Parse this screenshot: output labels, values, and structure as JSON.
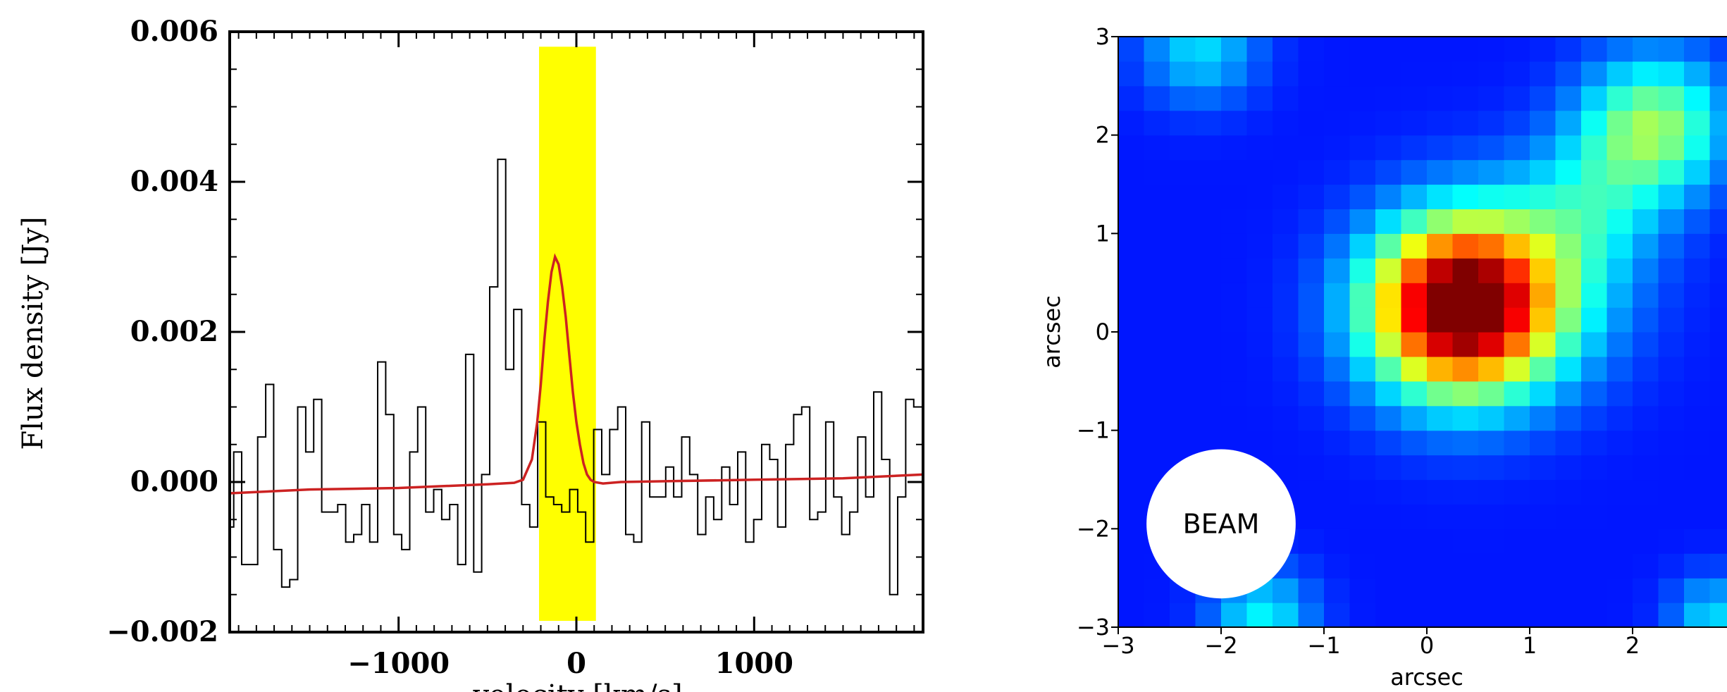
{
  "chart_data": [
    {
      "type": "line",
      "ylabel": "Flux density [Jy]",
      "xlabel": "velocity [km/s]",
      "xlim": [
        -1950,
        1950
      ],
      "ylim": [
        -0.002,
        0.006
      ],
      "yticks": [
        {
          "value": -0.002,
          "label": "−0.002"
        },
        {
          "value": 0.0,
          "label": "0.000"
        },
        {
          "value": 0.002,
          "label": "0.002"
        },
        {
          "value": 0.004,
          "label": "0.004"
        },
        {
          "value": 0.006,
          "label": "0.006"
        }
      ],
      "xticks": [
        {
          "value": -1000,
          "label": "−1000"
        },
        {
          "value": 0,
          "label": "0"
        },
        {
          "value": 1000,
          "label": "1000"
        }
      ],
      "highlight_band": {
        "x_range": [
          -210,
          110
        ],
        "color": "#ffff00"
      },
      "series": [
        {
          "style": "step",
          "color": "#000000",
          "x": [
            -1950,
            -1905,
            -1860,
            -1815,
            -1770,
            -1725,
            -1680,
            -1635,
            -1590,
            -1545,
            -1500,
            -1455,
            -1410,
            -1365,
            -1320,
            -1275,
            -1230,
            -1185,
            -1140,
            -1095,
            -1050,
            -1005,
            -960,
            -915,
            -870,
            -825,
            -780,
            -735,
            -690,
            -645,
            -600,
            -555,
            -510,
            -465,
            -420,
            -375,
            -330,
            -285,
            -240,
            -195,
            -150,
            -105,
            -60,
            -15,
            30,
            75,
            120,
            165,
            210,
            255,
            300,
            345,
            390,
            435,
            480,
            525,
            570,
            615,
            660,
            705,
            750,
            795,
            840,
            885,
            930,
            975,
            1020,
            1065,
            1110,
            1155,
            1200,
            1245,
            1290,
            1335,
            1380,
            1425,
            1470,
            1515,
            1560,
            1605,
            1650,
            1695,
            1740,
            1785,
            1830,
            1875,
            1920
          ],
          "y": [
            -0.0006,
            0.0004,
            -0.0011,
            -0.0011,
            0.0006,
            0.0013,
            -0.0009,
            -0.0014,
            -0.0013,
            0.001,
            0.0004,
            0.0011,
            -0.0004,
            -0.0004,
            -0.0003,
            -0.0008,
            -0.0007,
            -0.0003,
            -0.0008,
            0.0016,
            0.0009,
            -0.0007,
            -0.0009,
            0.0004,
            0.001,
            -0.0004,
            -0.0001,
            -0.0005,
            -0.0003,
            -0.0011,
            0.0017,
            -0.0012,
            0.0001,
            0.0026,
            0.0043,
            0.0015,
            0.0023,
            -0.0003,
            -0.0006,
            0.0008,
            -0.0002,
            -0.0003,
            -0.0004,
            -0.0001,
            -0.0004,
            -0.0008,
            0.0007,
            0.0001,
            0.0007,
            0.001,
            -0.0007,
            -0.0008,
            0.0008,
            -0.0002,
            -0.0002,
            0.0002,
            -0.0002,
            0.0006,
            0.0001,
            -0.0007,
            -0.0002,
            -0.0005,
            0.0002,
            -0.0003,
            0.0004,
            -0.0008,
            -0.0005,
            0.0005,
            0.0003,
            -0.0006,
            0.0005,
            0.0009,
            0.001,
            -0.0005,
            -0.0004,
            0.0008,
            -0.0002,
            -0.0007,
            -0.0004,
            0.0006,
            -0.0002,
            0.0012,
            0.0003,
            -0.0015,
            -0.0002,
            0.0011,
            0.001
          ]
        },
        {
          "style": "line",
          "color": "#cc2222",
          "x": [
            -1950,
            -1500,
            -1000,
            -500,
            -350,
            -300,
            -250,
            -220,
            -200,
            -180,
            -160,
            -140,
            -120,
            -100,
            -80,
            -60,
            -40,
            -20,
            0,
            20,
            40,
            60,
            80,
            100,
            150,
            250,
            500,
            1000,
            1500,
            1950
          ],
          "y": [
            -0.00015,
            -0.0001,
            -8e-05,
            -3e-05,
            -1e-05,
            3e-05,
            0.0003,
            0.0008,
            0.0013,
            0.0019,
            0.0024,
            0.0028,
            0.003,
            0.0029,
            0.0026,
            0.0022,
            0.0017,
            0.0012,
            0.0008,
            0.0005,
            0.00025,
            0.0001,
            3e-05,
            0.0,
            -2e-05,
            0.0,
            1e-05,
            3e-05,
            5e-05,
            0.0001
          ]
        }
      ]
    },
    {
      "type": "heatmap",
      "xlabel": "arcsec",
      "ylabel": "arcsec",
      "xlim": [
        -3,
        3
      ],
      "ylim": [
        -3,
        3
      ],
      "xticks": [
        {
          "value": -3,
          "label": "−3"
        },
        {
          "value": -2,
          "label": "−2"
        },
        {
          "value": -1,
          "label": "−1"
        },
        {
          "value": 0,
          "label": "0"
        },
        {
          "value": 1,
          "label": "1"
        },
        {
          "value": 2,
          "label": "2"
        }
      ],
      "yticks": [
        {
          "value": -3,
          "label": "−3"
        },
        {
          "value": -2,
          "label": "−2"
        },
        {
          "value": -1,
          "label": "−1"
        },
        {
          "value": 0,
          "label": "0"
        },
        {
          "value": 1,
          "label": "1"
        },
        {
          "value": 2,
          "label": "2"
        },
        {
          "value": 3,
          "label": "3"
        }
      ],
      "colormap": "jet",
      "pixel_size": 0.25,
      "components": [
        {
          "x": 0.3,
          "y": 0.25,
          "amp": 1.0,
          "sigma": 0.62
        },
        {
          "x": 2.2,
          "y": 2.1,
          "amp": 0.42,
          "sigma": 0.5
        },
        {
          "x": 1.0,
          "y": 0.45,
          "amp": 0.22,
          "sigma": 0.7
        },
        {
          "x": 1.6,
          "y": 1.3,
          "amp": 0.18,
          "sigma": 0.5
        },
        {
          "x": -2.2,
          "y": 2.9,
          "amp": 0.22,
          "sigma": 0.4
        },
        {
          "x": -1.6,
          "y": -2.9,
          "amp": 0.25,
          "sigma": 0.35
        },
        {
          "x": 2.8,
          "y": -2.9,
          "amp": 0.22,
          "sigma": 0.3
        }
      ],
      "beam": {
        "label": "BEAM",
        "x": -2.0,
        "y": -1.95,
        "diameter": 1.45
      }
    }
  ]
}
